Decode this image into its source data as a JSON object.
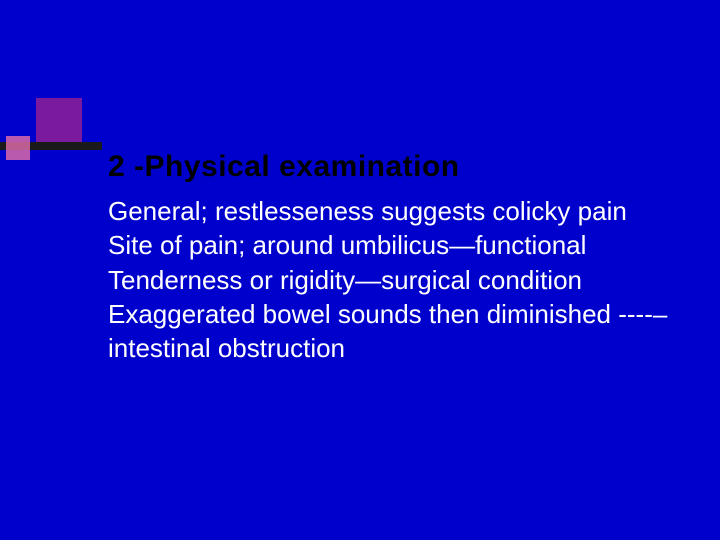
{
  "slide": {
    "title": "2 -Physical examination",
    "lines": [
      "General; restlesseness suggests colicky pain",
      "Site of pain; around umbilicus—functional",
      "Tenderness or rigidity—surgical condition",
      "Exaggerated bowel sounds then diminished ----–intestinal obstruction"
    ],
    "colors": {
      "background": "#0000cc",
      "title_color": "#000000",
      "body_color": "#ffffff",
      "accent_purple": "#7a1a9e",
      "accent_pink": "#d96aa8",
      "bar_color": "#1a1a1a"
    },
    "typography": {
      "title_fontsize": 30,
      "body_fontsize": 26,
      "font_family": "Verdana",
      "title_weight": "bold"
    }
  }
}
